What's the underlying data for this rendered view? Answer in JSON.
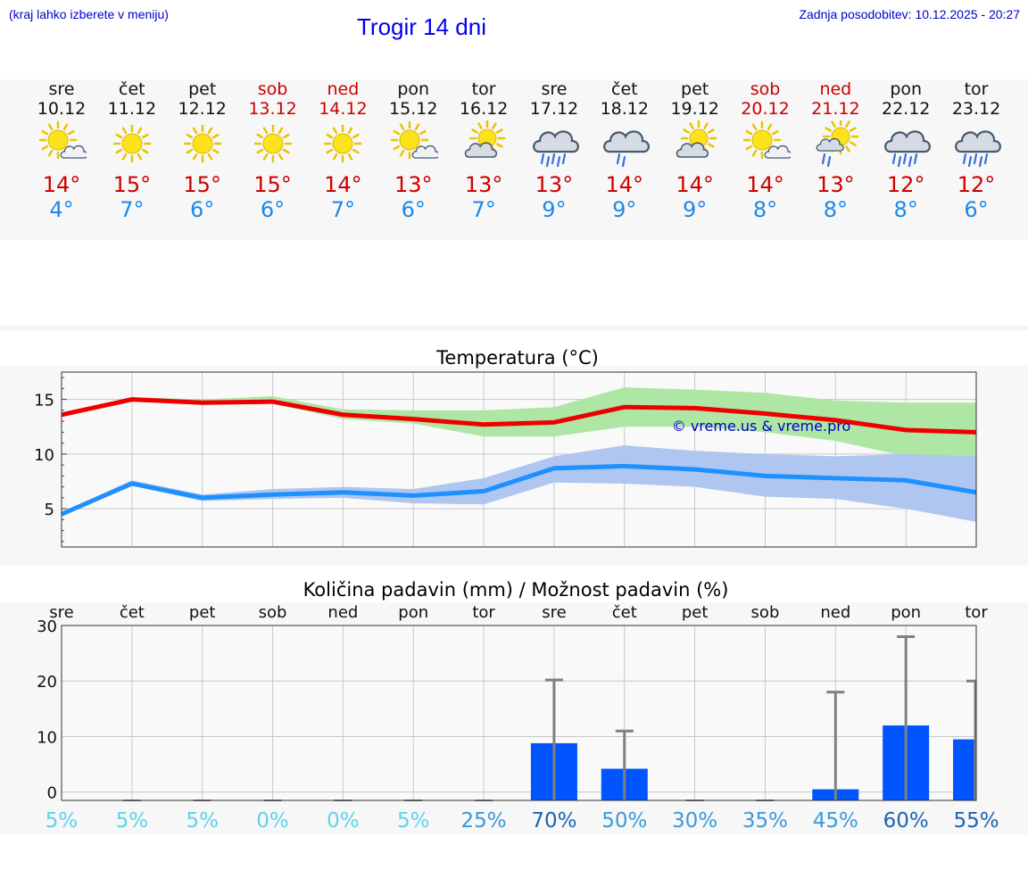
{
  "header": {
    "menu_hint": "(kraj lahko izberete v meniju)",
    "title": "Trogir 14 dni",
    "last_update": "Zadnja posodobitev: 10.12.2025 - 20:27"
  },
  "days": [
    {
      "day": "sre",
      "date": "10.12",
      "icon": "sun-cloud-icon",
      "tmax": "14°",
      "tmin": "4°",
      "weekend": false
    },
    {
      "day": "čet",
      "date": "11.12",
      "icon": "sun-icon",
      "tmax": "15°",
      "tmin": "7°",
      "weekend": false
    },
    {
      "day": "pet",
      "date": "12.12",
      "icon": "sun-icon",
      "tmax": "15°",
      "tmin": "6°",
      "weekend": false
    },
    {
      "day": "sob",
      "date": "13.12",
      "icon": "sun-icon",
      "tmax": "15°",
      "tmin": "6°",
      "weekend": true
    },
    {
      "day": "ned",
      "date": "14.12",
      "icon": "sun-icon",
      "tmax": "14°",
      "tmin": "7°",
      "weekend": true
    },
    {
      "day": "pon",
      "date": "15.12",
      "icon": "sun-cloud-icon",
      "tmax": "13°",
      "tmin": "6°",
      "weekend": false
    },
    {
      "day": "tor",
      "date": "16.12",
      "icon": "cloud-sun-icon",
      "tmax": "13°",
      "tmin": "7°",
      "weekend": false
    },
    {
      "day": "sre",
      "date": "17.12",
      "icon": "heavy-rain-icon",
      "tmax": "13°",
      "tmin": "9°",
      "weekend": false
    },
    {
      "day": "čet",
      "date": "18.12",
      "icon": "rain-icon",
      "tmax": "14°",
      "tmin": "9°",
      "weekend": false
    },
    {
      "day": "pet",
      "date": "19.12",
      "icon": "cloud-sun-icon",
      "tmax": "14°",
      "tmin": "9°",
      "weekend": false
    },
    {
      "day": "sob",
      "date": "20.12",
      "icon": "sun-cloud-icon",
      "tmax": "14°",
      "tmin": "8°",
      "weekend": true
    },
    {
      "day": "ned",
      "date": "21.12",
      "icon": "sun-rain-icon",
      "tmax": "13°",
      "tmin": "8°",
      "weekend": true
    },
    {
      "day": "pon",
      "date": "22.12",
      "icon": "heavy-rain-icon",
      "tmax": "12°",
      "tmin": "8°",
      "weekend": false
    },
    {
      "day": "tor",
      "date": "23.12",
      "icon": "heavy-rain-icon",
      "tmax": "12°",
      "tmin": "6°",
      "weekend": false
    }
  ],
  "chart_data": [
    {
      "type": "line",
      "title": "Temperatura (°C)",
      "watermark": "© vreme.us & vreme.pro",
      "xlabel": "",
      "ylabel": "",
      "ylim": [
        1.5,
        17.5
      ],
      "yticks": [
        5,
        10,
        15
      ],
      "grid": true,
      "x": [
        0,
        1,
        2,
        3,
        4,
        5,
        6,
        7,
        8,
        9,
        10,
        11,
        12,
        13
      ],
      "series": [
        {
          "name": "max",
          "color": "#ee0000",
          "values": [
            13.6,
            15.0,
            14.7,
            14.8,
            13.6,
            13.2,
            12.7,
            12.9,
            14.3,
            14.2,
            13.7,
            13.1,
            12.2,
            12.0
          ],
          "band_low": [
            13.6,
            14.8,
            14.5,
            14.6,
            13.2,
            12.8,
            11.6,
            11.6,
            12.5,
            12.5,
            12.0,
            11.2,
            9.8,
            9.3
          ],
          "band_high": [
            13.6,
            15.2,
            15.0,
            15.3,
            14.1,
            14.0,
            14.0,
            14.3,
            16.1,
            15.9,
            15.6,
            14.9,
            14.7,
            14.7
          ],
          "band_color": "#aee6a4"
        },
        {
          "name": "min",
          "color": "#1e90ff",
          "values": [
            4.5,
            7.3,
            6.0,
            6.3,
            6.5,
            6.2,
            6.6,
            8.7,
            8.9,
            8.6,
            8.0,
            7.8,
            7.6,
            6.5
          ],
          "band_low": [
            4.4,
            7.1,
            5.7,
            5.9,
            6.0,
            5.5,
            5.4,
            7.4,
            7.3,
            7.0,
            6.1,
            5.9,
            5.0,
            3.8
          ],
          "band_high": [
            4.7,
            7.6,
            6.3,
            6.8,
            7.0,
            6.8,
            7.8,
            9.8,
            10.8,
            10.3,
            10.0,
            9.8,
            10.0,
            9.8
          ],
          "band_color": "#aec6f0"
        }
      ]
    },
    {
      "type": "bar",
      "title": "Količina padavin (mm) / Možnost padavin (%)",
      "categories": [
        "sre",
        "čet",
        "pet",
        "sob",
        "ned",
        "pon",
        "tor",
        "sre",
        "čet",
        "pet",
        "sob",
        "ned",
        "pon",
        "tor"
      ],
      "ylim": [
        -1.5,
        30
      ],
      "yticks": [
        0,
        10,
        20,
        30
      ],
      "grid": true,
      "values": [
        0,
        0,
        0,
        0,
        0,
        0,
        0,
        8.8,
        4.2,
        0,
        0,
        0.5,
        12,
        9.5
      ],
      "error_high": [
        0,
        0,
        0,
        0,
        0,
        0,
        0,
        20.2,
        11.0,
        0,
        0,
        18.0,
        28.0,
        20.0
      ],
      "bar_color": "#0055ff",
      "probability": [
        "5%",
        "5%",
        "5%",
        "0%",
        "0%",
        "5%",
        "25%",
        "70%",
        "50%",
        "30%",
        "35%",
        "45%",
        "60%",
        "55%"
      ],
      "probability_colors": [
        "#5ed3e8",
        "#5ed3e8",
        "#5ed3e8",
        "#5ed3e8",
        "#5ed3e8",
        "#5ed3e8",
        "#3a9ad9",
        "#1f63b0",
        "#3a9ad9",
        "#3a9ad9",
        "#3a9ad9",
        "#3a9ad9",
        "#1f63b0",
        "#1f63b0"
      ]
    }
  ]
}
